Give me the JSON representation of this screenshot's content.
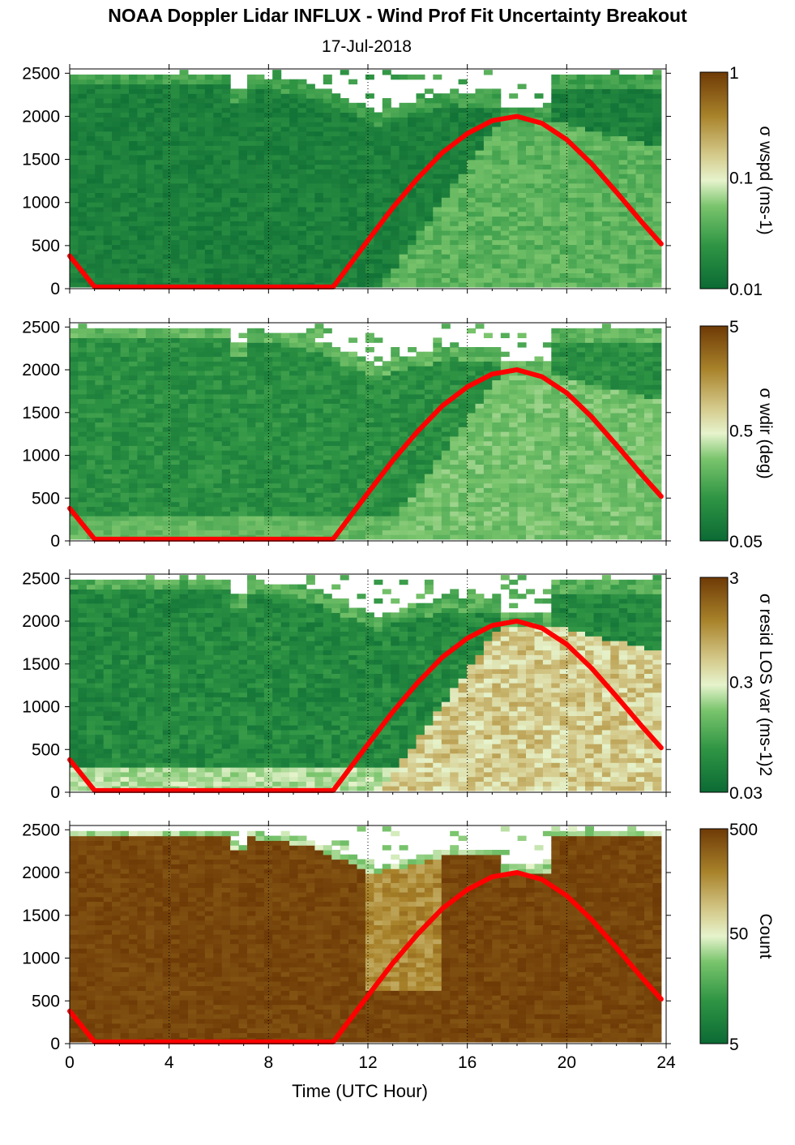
{
  "title": "NOAA Doppler Lidar INFLUX - Wind Prof Fit Uncertainty Breakout",
  "subtitle": "17-Jul-2018",
  "chart_data": [
    {
      "type": "heatmap",
      "colorbar": {
        "label": "σ wspd (ms-1)",
        "ticks": [
          "1",
          "0.1",
          "0.01"
        ],
        "scale": "log",
        "range": [
          0.01,
          1
        ]
      },
      "x": {
        "label": "",
        "ticks": [
          0,
          4,
          8,
          12,
          16,
          20,
          24
        ],
        "range": [
          0,
          24
        ]
      },
      "y": {
        "ticks": [
          0,
          500,
          1000,
          1500,
          2000,
          2500
        ],
        "range": [
          0,
          2550
        ]
      },
      "overlay_curve": {
        "color": "#ff0000",
        "peak": {
          "x": 18,
          "y": 2000
        }
      }
    },
    {
      "type": "heatmap",
      "colorbar": {
        "label": "σ wdir (deg)",
        "ticks": [
          "5",
          "0.5",
          "0.05"
        ],
        "scale": "log",
        "range": [
          0.05,
          5
        ]
      },
      "x": {
        "label": "",
        "ticks": [
          0,
          4,
          8,
          12,
          16,
          20,
          24
        ],
        "range": [
          0,
          24
        ]
      },
      "y": {
        "ticks": [
          0,
          500,
          1000,
          1500,
          2000,
          2500
        ],
        "range": [
          0,
          2550
        ]
      },
      "overlay_curve": {
        "color": "#ff0000",
        "peak": {
          "x": 18,
          "y": 2000
        }
      }
    },
    {
      "type": "heatmap",
      "colorbar": {
        "label": "σ resid LOS var (ms-1)2",
        "ticks": [
          "3",
          "0.3",
          "0.03"
        ],
        "scale": "log",
        "range": [
          0.03,
          3
        ]
      },
      "x": {
        "label": "",
        "ticks": [
          0,
          4,
          8,
          12,
          16,
          20,
          24
        ],
        "range": [
          0,
          24
        ]
      },
      "y": {
        "ticks": [
          0,
          500,
          1000,
          1500,
          2000,
          2500
        ],
        "range": [
          0,
          2550
        ]
      },
      "overlay_curve": {
        "color": "#ff0000",
        "peak": {
          "x": 18,
          "y": 2000
        }
      }
    },
    {
      "type": "heatmap",
      "colorbar": {
        "label": "Count",
        "ticks": [
          "500",
          "50",
          "5"
        ],
        "scale": "log",
        "range": [
          1.5,
          700
        ]
      },
      "x": {
        "label": "Time (UTC Hour)",
        "ticks": [
          0,
          4,
          8,
          12,
          16,
          20,
          24
        ],
        "range": [
          0,
          24
        ]
      },
      "y": {
        "ticks": [
          0,
          500,
          1000,
          1500,
          2000,
          2500
        ],
        "range": [
          0,
          2550
        ]
      },
      "overlay_curve": {
        "color": "#ff0000",
        "peak": {
          "x": 18,
          "y": 2000
        }
      }
    }
  ],
  "colors": {
    "low": "#0b6a34",
    "mid": "#e6f0c8",
    "high": "#6e3a06",
    "curve": "#ff0000"
  },
  "curve_points": [
    [
      0,
      380
    ],
    [
      1,
      20
    ],
    [
      10.6,
      20
    ],
    [
      12,
      560
    ],
    [
      13,
      940
    ],
    [
      14,
      1280
    ],
    [
      15,
      1580
    ],
    [
      16,
      1800
    ],
    [
      17,
      1950
    ],
    [
      18,
      2000
    ],
    [
      19,
      1920
    ],
    [
      20,
      1730
    ],
    [
      21,
      1450
    ],
    [
      22,
      1120
    ],
    [
      23,
      780
    ],
    [
      23.8,
      520
    ]
  ]
}
